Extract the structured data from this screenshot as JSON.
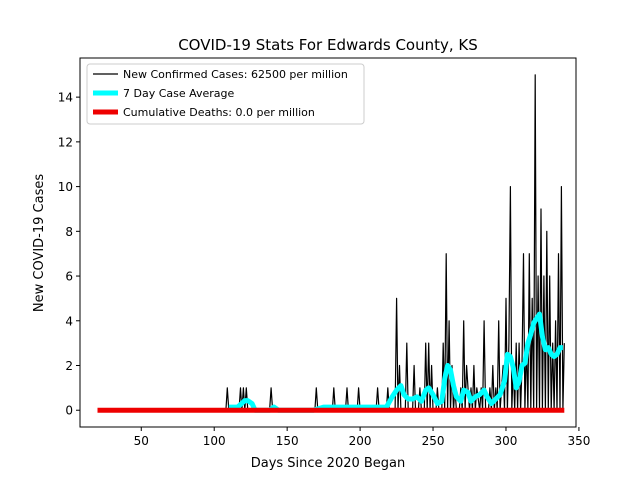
{
  "chart_data": {
    "type": "line",
    "title": "COVID-19 Stats For Edwards County, KS",
    "xlabel": "Days Since 2020 Began",
    "ylabel": "New COVID-19 Cases",
    "xlim": [
      8,
      348
    ],
    "ylim": [
      -0.75,
      15.75
    ],
    "xticks": [
      50,
      100,
      150,
      200,
      250,
      300,
      350
    ],
    "yticks": [
      0,
      2,
      4,
      6,
      8,
      10,
      12,
      14
    ],
    "grid": false,
    "legend": "top-left",
    "series": [
      {
        "name": "New Confirmed Cases: 62500 per million",
        "color": "#000000",
        "x": [
          20,
          108,
          109,
          110,
          117,
          118,
          119,
          120,
          121,
          122,
          123,
          138,
          139,
          140,
          169,
          170,
          171,
          181,
          182,
          183,
          190,
          191,
          192,
          198,
          199,
          200,
          211,
          212,
          213,
          218,
          219,
          220,
          224,
          225,
          226,
          227,
          228,
          231,
          232,
          233,
          236,
          237,
          238,
          240,
          241,
          242,
          244,
          245,
          246,
          247,
          248,
          249,
          250,
          252,
          253,
          254,
          256,
          257,
          258,
          259,
          260,
          261,
          262,
          263,
          264,
          265,
          266,
          268,
          269,
          270,
          271,
          272,
          273,
          274,
          275,
          276,
          277,
          278,
          279,
          280,
          282,
          283,
          284,
          285,
          286,
          288,
          289,
          290,
          291,
          292,
          293,
          294,
          295,
          296,
          297,
          298,
          299,
          300,
          301,
          302,
          303,
          304,
          305,
          306,
          307,
          308,
          309,
          310,
          311,
          312,
          313,
          314,
          315,
          316,
          317,
          318,
          319,
          320,
          321,
          322,
          323,
          324,
          325,
          326,
          327,
          328,
          329,
          330,
          331,
          332,
          333,
          334,
          335,
          336,
          337,
          338,
          339,
          340
        ],
        "y": [
          0,
          0,
          1,
          0,
          0,
          1,
          0,
          1,
          0,
          1,
          0,
          0,
          1,
          0,
          0,
          1,
          0,
          0,
          1,
          0,
          0,
          1,
          0,
          0,
          1,
          0,
          0,
          1,
          0,
          0,
          1,
          0,
          0,
          5,
          0,
          2,
          0,
          0,
          3,
          0,
          0,
          2,
          0,
          0,
          1,
          0,
          0,
          3,
          0,
          3,
          0,
          2,
          0,
          0,
          1,
          0,
          0,
          3,
          0,
          7,
          0,
          4,
          0,
          2,
          0,
          1,
          0,
          0,
          1,
          0,
          4,
          0,
          2,
          1,
          0,
          1,
          0,
          2,
          0,
          1,
          0,
          1,
          0,
          4,
          0,
          0,
          1,
          0,
          2,
          0,
          1,
          0,
          4,
          0,
          1,
          2,
          0,
          5,
          0,
          3,
          10,
          0,
          2,
          0,
          3,
          0,
          3,
          0,
          2,
          7,
          0,
          3,
          0,
          7,
          0,
          5,
          0,
          15,
          0,
          6,
          0,
          9,
          0,
          6,
          0,
          8,
          0,
          6,
          0,
          3,
          0,
          4,
          0,
          7,
          0,
          10,
          0,
          3
        ]
      },
      {
        "name": "7 Day Case Average",
        "color": "#00ffff",
        "x": [
          110,
          116,
          121,
          123,
          126,
          128,
          138,
          141,
          144,
          168,
          175,
          180,
          186,
          192,
          200,
          212,
          218,
          222,
          225,
          228,
          230,
          233,
          236,
          239,
          242,
          245,
          247,
          250,
          253,
          256,
          258,
          260,
          262,
          264,
          266,
          269,
          271,
          274,
          276,
          279,
          282,
          285,
          287,
          290,
          293,
          296,
          299,
          301,
          303,
          305,
          307,
          309,
          311,
          313,
          315,
          317,
          319,
          321,
          323,
          325,
          327,
          329,
          331,
          333,
          335,
          337,
          339
        ],
        "y": [
          0.14,
          0.14,
          0.43,
          0.43,
          0.29,
          0,
          0,
          0.14,
          0,
          0,
          0.14,
          0.14,
          0.14,
          0.14,
          0.14,
          0.14,
          0.14,
          0.6,
          0.9,
          1.1,
          0.7,
          0.5,
          0.5,
          0.6,
          0.4,
          0.9,
          1.0,
          0.7,
          0.3,
          0.4,
          1.4,
          2.0,
          1.8,
          1.1,
          0.6,
          0.4,
          0.9,
          0.8,
          0.4,
          0.6,
          0.7,
          0.9,
          0.6,
          0.3,
          0.5,
          0.7,
          1.3,
          2.5,
          2.4,
          1.9,
          1.0,
          1.3,
          2.0,
          2.1,
          3.0,
          3.4,
          3.9,
          4.1,
          4.3,
          3.3,
          2.7,
          2.8,
          2.5,
          2.4,
          2.5,
          2.8,
          2.8
        ]
      },
      {
        "name": "Cumulative Deaths: 0.0 per million",
        "color": "#ee0000",
        "x": [
          20,
          340
        ],
        "y": [
          0,
          0
        ]
      }
    ]
  }
}
